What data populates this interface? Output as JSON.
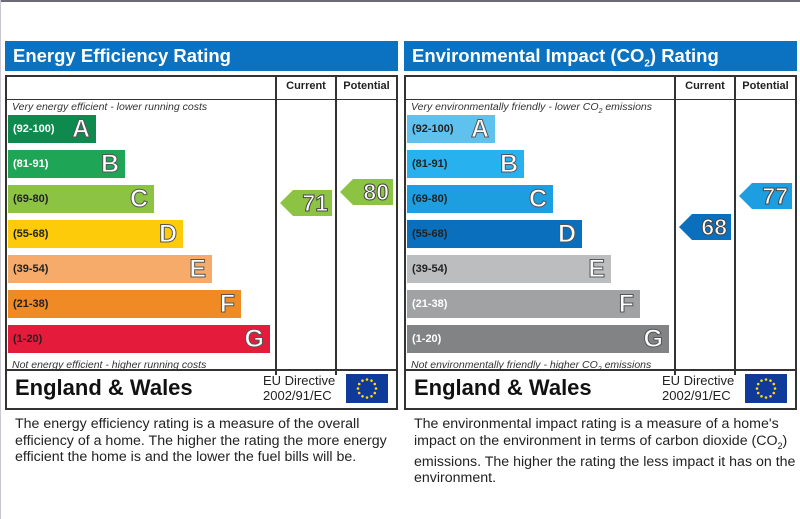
{
  "chart_data": [
    {
      "type": "bar",
      "title": "Energy Efficiency Rating",
      "columns": [
        "Current",
        "Potential"
      ],
      "top_caption": "Very energy efficient - lower running costs",
      "bottom_caption": "Not energy efficient - higher running costs",
      "bands": [
        {
          "range": "(92-100)",
          "letter": "A",
          "color": "#0f8a4f",
          "text_color": "#ffffff"
        },
        {
          "range": "(81-91)",
          "letter": "B",
          "color": "#1ea556",
          "text_color": "#ffffff"
        },
        {
          "range": "(69-80)",
          "letter": "C",
          "color": "#8cc342",
          "text_color": "#222222"
        },
        {
          "range": "(55-68)",
          "letter": "D",
          "color": "#fdcb0a",
          "text_color": "#222222"
        },
        {
          "range": "(39-54)",
          "letter": "E",
          "color": "#f6ab6a",
          "text_color": "#222222"
        },
        {
          "range": "(21-38)",
          "letter": "F",
          "color": "#f08a24",
          "text_color": "#222222"
        },
        {
          "range": "(1-20)",
          "letter": "G",
          "color": "#e51b3b",
          "text_color": "#222222"
        }
      ],
      "current": {
        "value": 71,
        "band": "C",
        "color": "#8cc342"
      },
      "potential": {
        "value": 80,
        "band": "C",
        "color": "#8cc342"
      },
      "region": "England & Wales",
      "directive_line1": "EU Directive",
      "directive_line2": "2002/91/EC",
      "description": "The energy efficiency rating is a measure of the overall efficiency of a home. The higher the rating the more energy efficient the home is and the lower the fuel bills will be."
    },
    {
      "type": "bar",
      "title": "Environmental Impact (CO2) Rating",
      "columns": [
        "Current",
        "Potential"
      ],
      "top_caption": "Very environmentally friendly - lower CO2 emissions",
      "bottom_caption": "Not environmentally friendly - higher CO2 emissions",
      "bands": [
        {
          "range": "(92-100)",
          "letter": "A",
          "color": "#5fc1ee",
          "text_color": "#222222"
        },
        {
          "range": "(81-91)",
          "letter": "B",
          "color": "#27b2ef",
          "text_color": "#222222"
        },
        {
          "range": "(69-80)",
          "letter": "C",
          "color": "#1c9ee0",
          "text_color": "#222222"
        },
        {
          "range": "(55-68)",
          "letter": "D",
          "color": "#0a70bd",
          "text_color": "#222222"
        },
        {
          "range": "(39-54)",
          "letter": "E",
          "color": "#bcbdbf",
          "text_color": "#222222"
        },
        {
          "range": "(21-38)",
          "letter": "F",
          "color": "#a1a2a4",
          "text_color": "#ffffff"
        },
        {
          "range": "(1-20)",
          "letter": "G",
          "color": "#828385",
          "text_color": "#ffffff"
        }
      ],
      "current": {
        "value": 68,
        "band": "D",
        "color": "#0a70bd"
      },
      "potential": {
        "value": 77,
        "band": "C",
        "color": "#1c9ee0"
      },
      "region": "England & Wales",
      "directive_line1": "EU Directive",
      "directive_line2": "2002/91/EC",
      "description": "The environmental impact rating is a measure of a home's impact on the environment in terms of carbon dioxide (CO2) emissions. The higher the rating the less impact it has on the environment."
    }
  ]
}
